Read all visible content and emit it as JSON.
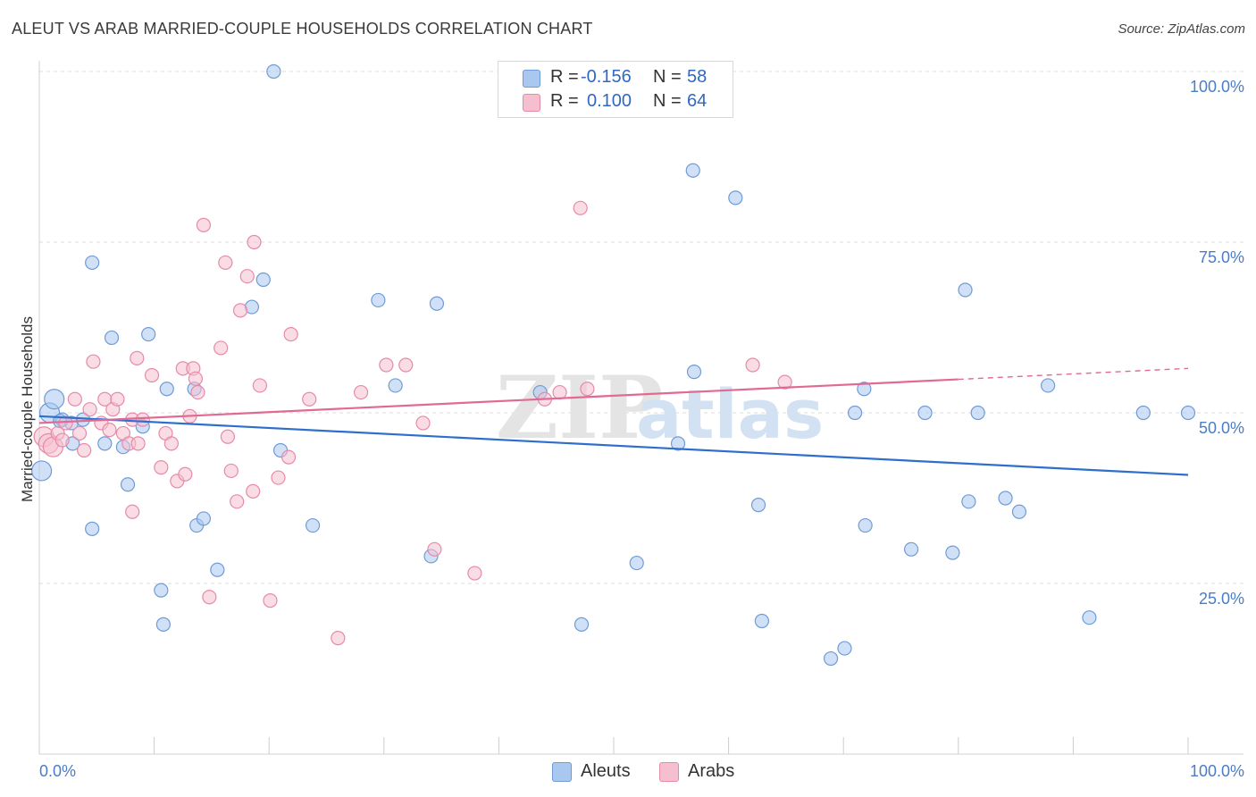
{
  "header": {
    "title": "ALEUT VS ARAB MARRIED-COUPLE HOUSEHOLDS CORRELATION CHART",
    "source": "Source: ZipAtlas.com"
  },
  "legend": {
    "series": [
      {
        "r_label": "R =",
        "r_value": "-0.156",
        "n_label": "N =",
        "n_value": "58",
        "color": "#a9c8f0",
        "border": "#6f9bd6"
      },
      {
        "r_label": "R =",
        "r_value": "0.100",
        "n_label": "N =",
        "n_value": "64",
        "color": "#f6bfd0",
        "border": "#e68aa8"
      }
    ]
  },
  "bottom_legend": [
    {
      "label": "Aleuts",
      "color": "#a9c8f0",
      "border": "#6f9bd6"
    },
    {
      "label": "Arabs",
      "color": "#f6bfd0",
      "border": "#e68aa8"
    }
  ],
  "watermark": {
    "part1": "ZIP",
    "part2": "atlas"
  },
  "chart_data": {
    "type": "scatter",
    "title": "ALEUT VS ARAB MARRIED-COUPLE HOUSEHOLDS CORRELATION CHART",
    "xlabel": "",
    "ylabel": "Married-couple Households",
    "xlim": [
      0,
      100
    ],
    "ylim": [
      0,
      100
    ],
    "x_tick_labels": [
      "0.0%",
      "100.0%"
    ],
    "y_ticks": [
      {
        "value": 25,
        "label": "25.0%"
      },
      {
        "value": 50,
        "label": "50.0%"
      },
      {
        "value": 75,
        "label": "75.0%"
      },
      {
        "value": 100,
        "label": "100.0%"
      }
    ],
    "series": [
      {
        "name": "Aleuts",
        "color": "#6f9bd6",
        "fill": "#a9c8f0",
        "line_color": "#2f6fcc",
        "trend": {
          "x": [
            0,
            100
          ],
          "y": [
            49.5,
            40.9
          ],
          "dashed_from": null
        },
        "points": [
          [
            0.2,
            41.5
          ],
          [
            0.9,
            50.0
          ],
          [
            1.3,
            52.0
          ],
          [
            2.0,
            49.0
          ],
          [
            2.8,
            48.5
          ],
          [
            3.8,
            49.0
          ],
          [
            2.9,
            45.5
          ],
          [
            4.6,
            33.0
          ],
          [
            4.6,
            72.0
          ],
          [
            5.7,
            45.5
          ],
          [
            6.3,
            61.0
          ],
          [
            7.3,
            45.0
          ],
          [
            7.7,
            39.5
          ],
          [
            9.0,
            48.0
          ],
          [
            9.5,
            61.5
          ],
          [
            10.6,
            24.0
          ],
          [
            10.8,
            19.0
          ],
          [
            11.1,
            53.5
          ],
          [
            13.5,
            53.5
          ],
          [
            13.7,
            33.5
          ],
          [
            14.3,
            34.5
          ],
          [
            15.5,
            27.0
          ],
          [
            18.5,
            65.5
          ],
          [
            19.5,
            69.5
          ],
          [
            20.4,
            100.0
          ],
          [
            21.0,
            44.5
          ],
          [
            23.8,
            33.5
          ],
          [
            29.5,
            66.5
          ],
          [
            31.0,
            54.0
          ],
          [
            34.6,
            66.0
          ],
          [
            34.1,
            29.0
          ],
          [
            43.6,
            53.0
          ],
          [
            47.2,
            19.0
          ],
          [
            52.0,
            28.0
          ],
          [
            55.6,
            45.5
          ],
          [
            56.9,
            85.5
          ],
          [
            57.0,
            56.0
          ],
          [
            60.6,
            81.5
          ],
          [
            62.6,
            36.5
          ],
          [
            62.9,
            19.5
          ],
          [
            68.9,
            14.0
          ],
          [
            70.1,
            15.5
          ],
          [
            71.0,
            50.0
          ],
          [
            71.8,
            53.5
          ],
          [
            71.9,
            33.5
          ],
          [
            75.9,
            30.0
          ],
          [
            77.1,
            50.0
          ],
          [
            79.5,
            29.5
          ],
          [
            80.6,
            68.0
          ],
          [
            80.9,
            37.0
          ],
          [
            81.7,
            50.0
          ],
          [
            84.1,
            37.5
          ],
          [
            85.3,
            35.5
          ],
          [
            87.8,
            54.0
          ],
          [
            91.4,
            20.0
          ],
          [
            96.1,
            50.0
          ],
          [
            100.0,
            50.0
          ],
          [
            1.8,
            48.8
          ]
        ]
      },
      {
        "name": "Arabs",
        "color": "#e68aa8",
        "fill": "#f6bfd0",
        "line_color": "#e06a93",
        "trend": {
          "x": [
            0,
            100
          ],
          "y": [
            48.5,
            56.5
          ],
          "dashed_from": 80
        },
        "points": [
          [
            0.4,
            46.5
          ],
          [
            0.8,
            45.5
          ],
          [
            1.2,
            45.0
          ],
          [
            1.6,
            47.0
          ],
          [
            2.0,
            46.0
          ],
          [
            2.3,
            48.5
          ],
          [
            3.1,
            52.0
          ],
          [
            3.9,
            44.5
          ],
          [
            4.4,
            50.5
          ],
          [
            4.7,
            57.5
          ],
          [
            5.4,
            48.5
          ],
          [
            5.7,
            52.0
          ],
          [
            6.1,
            47.5
          ],
          [
            6.4,
            50.5
          ],
          [
            6.8,
            52.0
          ],
          [
            7.3,
            47.0
          ],
          [
            7.8,
            45.5
          ],
          [
            8.1,
            49.0
          ],
          [
            8.5,
            58.0
          ],
          [
            9.0,
            49.0
          ],
          [
            9.8,
            55.5
          ],
          [
            10.6,
            42.0
          ],
          [
            11.0,
            47.0
          ],
          [
            11.5,
            45.5
          ],
          [
            12.0,
            40.0
          ],
          [
            12.5,
            56.5
          ],
          [
            12.7,
            41.0
          ],
          [
            13.1,
            49.5
          ],
          [
            13.4,
            56.5
          ],
          [
            13.6,
            55.0
          ],
          [
            13.8,
            53.0
          ],
          [
            14.3,
            77.5
          ],
          [
            14.8,
            23.0
          ],
          [
            15.8,
            59.5
          ],
          [
            16.2,
            72.0
          ],
          [
            16.4,
            46.5
          ],
          [
            16.7,
            41.5
          ],
          [
            17.2,
            37.0
          ],
          [
            17.5,
            65.0
          ],
          [
            18.1,
            70.0
          ],
          [
            18.6,
            38.5
          ],
          [
            18.7,
            75.0
          ],
          [
            19.2,
            54.0
          ],
          [
            20.1,
            22.5
          ],
          [
            20.8,
            40.5
          ],
          [
            21.7,
            43.5
          ],
          [
            21.9,
            61.5
          ],
          [
            23.5,
            52.0
          ],
          [
            26.0,
            17.0
          ],
          [
            28.0,
            53.0
          ],
          [
            30.2,
            57.0
          ],
          [
            31.9,
            57.0
          ],
          [
            33.4,
            48.5
          ],
          [
            34.4,
            30.0
          ],
          [
            37.9,
            26.5
          ],
          [
            44.0,
            52.0
          ],
          [
            45.3,
            53.0
          ],
          [
            47.1,
            80.0
          ],
          [
            47.7,
            53.5
          ],
          [
            62.1,
            57.0
          ],
          [
            64.9,
            54.5
          ],
          [
            8.6,
            45.5
          ],
          [
            8.1,
            35.5
          ],
          [
            3.5,
            47.0
          ]
        ]
      }
    ]
  }
}
